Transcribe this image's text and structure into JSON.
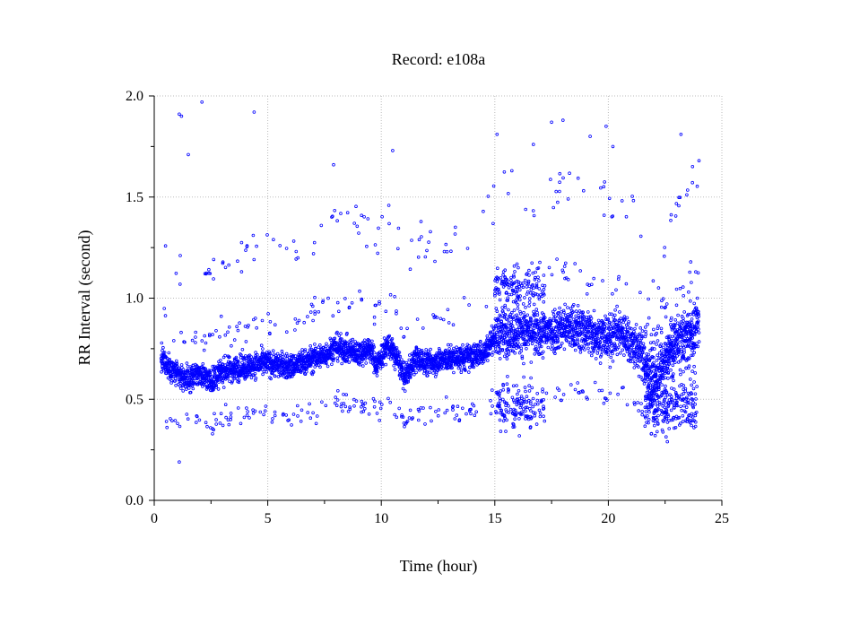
{
  "chart_data": {
    "type": "scatter",
    "title": "Record:  e108a",
    "xlabel": "Time (hour)",
    "ylabel": "RR Interval (second)",
    "xlim": [
      0,
      25
    ],
    "ylim": [
      0.0,
      2.0
    ],
    "xticks": [
      0,
      5,
      10,
      15,
      20,
      25
    ],
    "yticks": [
      0.0,
      0.5,
      1.0,
      1.5,
      2.0
    ],
    "xtick_labels": [
      "0",
      "5",
      "10",
      "15",
      "20",
      "25"
    ],
    "ytick_labels": [
      "0.0",
      "0.5",
      "1.0",
      "1.5",
      "2.0"
    ],
    "grid": true,
    "marker_color": "#0000ff",
    "trend": [
      {
        "t": 0.3,
        "rr": 0.7
      },
      {
        "t": 1.0,
        "rr": 0.62
      },
      {
        "t": 1.5,
        "rr": 0.6
      },
      {
        "t": 2.0,
        "rr": 0.63
      },
      {
        "t": 2.5,
        "rr": 0.59
      },
      {
        "t": 3.0,
        "rr": 0.64
      },
      {
        "t": 4.0,
        "rr": 0.66
      },
      {
        "t": 5.0,
        "rr": 0.68
      },
      {
        "t": 6.0,
        "rr": 0.66
      },
      {
        "t": 6.5,
        "rr": 0.68
      },
      {
        "t": 7.0,
        "rr": 0.7
      },
      {
        "t": 7.5,
        "rr": 0.72
      },
      {
        "t": 8.0,
        "rr": 0.76
      },
      {
        "t": 8.5,
        "rr": 0.74
      },
      {
        "t": 9.0,
        "rr": 0.73
      },
      {
        "t": 9.5,
        "rr": 0.75
      },
      {
        "t": 9.8,
        "rr": 0.67
      },
      {
        "t": 10.3,
        "rr": 0.77
      },
      {
        "t": 10.8,
        "rr": 0.68
      },
      {
        "t": 11.0,
        "rr": 0.6
      },
      {
        "t": 11.5,
        "rr": 0.7
      },
      {
        "t": 12.0,
        "rr": 0.68
      },
      {
        "t": 13.0,
        "rr": 0.7
      },
      {
        "t": 14.0,
        "rr": 0.71
      },
      {
        "t": 14.6,
        "rr": 0.74
      },
      {
        "t": 15.0,
        "rr": 0.82
      },
      {
        "t": 16.0,
        "rr": 0.84
      },
      {
        "t": 17.0,
        "rr": 0.82
      },
      {
        "t": 18.0,
        "rr": 0.86
      },
      {
        "t": 19.0,
        "rr": 0.84
      },
      {
        "t": 20.0,
        "rr": 0.8
      },
      {
        "t": 20.5,
        "rr": 0.84
      },
      {
        "t": 21.0,
        "rr": 0.78
      },
      {
        "t": 21.5,
        "rr": 0.72
      },
      {
        "t": 21.9,
        "rr": 0.55
      },
      {
        "t": 22.5,
        "rr": 0.68
      },
      {
        "t": 23.0,
        "rr": 0.78
      },
      {
        "t": 23.5,
        "rr": 0.82
      },
      {
        "t": 24.0,
        "rr": 0.86
      }
    ],
    "outliers": [
      {
        "t": 1.1,
        "rr": 1.91
      },
      {
        "t": 1.2,
        "rr": 1.9
      },
      {
        "t": 2.1,
        "rr": 1.97
      },
      {
        "t": 4.4,
        "rr": 1.92
      },
      {
        "t": 1.5,
        "rr": 1.71
      },
      {
        "t": 7.9,
        "rr": 1.66
      },
      {
        "t": 1.1,
        "rr": 0.19
      },
      {
        "t": 22.6,
        "rr": 0.29
      },
      {
        "t": 21.9,
        "rr": 0.33
      },
      {
        "t": 15.1,
        "rr": 1.81
      },
      {
        "t": 17.5,
        "rr": 1.87
      },
      {
        "t": 18.0,
        "rr": 1.88
      },
      {
        "t": 19.9,
        "rr": 1.85
      },
      {
        "t": 23.2,
        "rr": 1.81
      },
      {
        "t": 16.7,
        "rr": 1.76
      },
      {
        "t": 19.2,
        "rr": 1.8
      },
      {
        "t": 20.2,
        "rr": 1.75
      },
      {
        "t": 10.5,
        "rr": 1.73
      }
    ]
  }
}
